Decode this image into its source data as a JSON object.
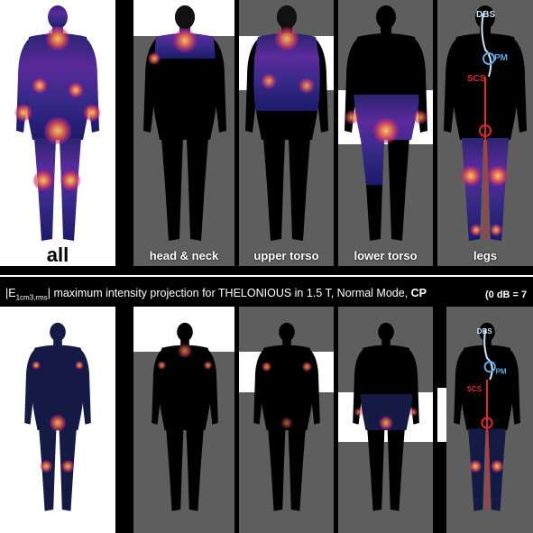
{
  "top_row": {
    "labels": [
      "all",
      "head & neck",
      "upper torso",
      "lower torso",
      "legs"
    ]
  },
  "caption": {
    "prefix": "|E",
    "subscript": "1cm3,rms",
    "text": "| maximum intensity projection for THELONIOUS in 1.5 T, Normal Mode, ",
    "mode": "CP",
    "right": "(0 dB = 7"
  },
  "implant_tags": {
    "dbs": "DBS",
    "pm": "PM",
    "scs": "SCS"
  },
  "colors": {
    "hot": "#ffd54a",
    "mid": "#e8366a",
    "cool": "#5b2a9c",
    "deep": "#1c1a6a",
    "lead": "#c9e6ff",
    "red_lead": "#e02828"
  }
}
